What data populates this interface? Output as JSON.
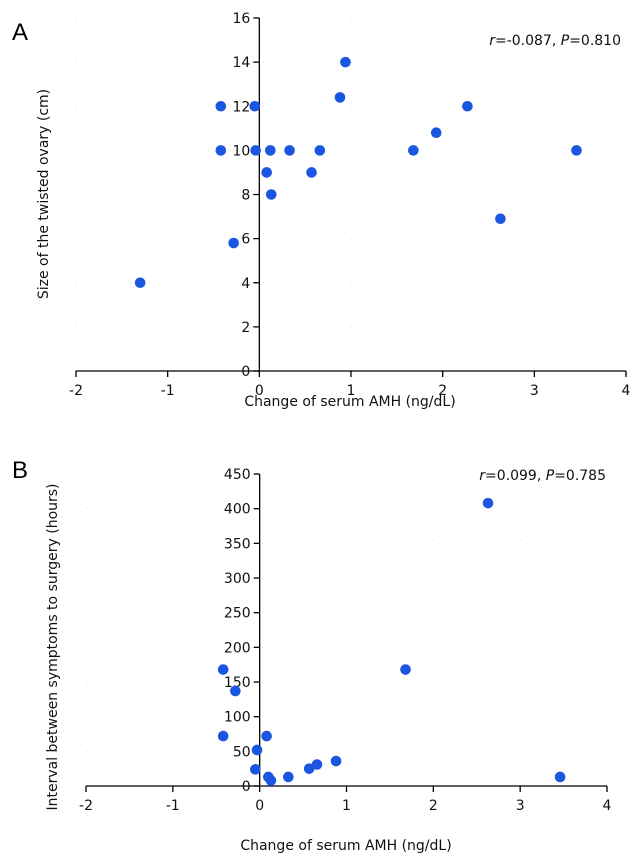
{
  "chart_data": [
    {
      "type": "scatter",
      "panel": "A",
      "title": "",
      "xlabel": "Change of serum AMH (ng/dL)",
      "ylabel": "Size of the twisted ovary (cm)",
      "xlim": [
        -2,
        4
      ],
      "ylim": [
        0,
        16
      ],
      "xticks": [
        -2,
        -1,
        0,
        1,
        2,
        3,
        4
      ],
      "yticks": [
        0,
        2,
        4,
        6,
        8,
        10,
        12,
        14,
        16
      ],
      "annotation": {
        "r_label": "r",
        "r_value": "=-0.087, ",
        "p_label": "P",
        "p_value": "=0.810"
      },
      "points": [
        [
          -1.3,
          4.0
        ],
        [
          -0.42,
          12.0
        ],
        [
          -0.42,
          10.0
        ],
        [
          -0.28,
          5.8
        ],
        [
          -0.05,
          12.0
        ],
        [
          -0.04,
          10.0
        ],
        [
          0.08,
          9.0
        ],
        [
          0.12,
          10.0
        ],
        [
          0.13,
          8.0
        ],
        [
          0.33,
          10.0
        ],
        [
          0.57,
          9.0
        ],
        [
          0.66,
          10.0
        ],
        [
          0.88,
          12.4
        ],
        [
          0.94,
          14.0
        ],
        [
          1.68,
          10.0
        ],
        [
          1.93,
          10.8
        ],
        [
          2.27,
          12.0
        ],
        [
          2.63,
          6.9
        ],
        [
          3.46,
          10.0
        ]
      ]
    },
    {
      "type": "scatter",
      "panel": "B",
      "title": "",
      "xlabel": "Change of serum AMH (ng/dL)",
      "ylabel": "Interval between symptoms to surgery (hours)",
      "xlim": [
        -2,
        4
      ],
      "ylim": [
        0,
        450
      ],
      "xticks": [
        -2,
        -1,
        0,
        1,
        2,
        3,
        4
      ],
      "yticks": [
        0,
        50,
        100,
        150,
        200,
        250,
        300,
        350,
        400,
        450
      ],
      "annotation": {
        "r_label": "r",
        "r_value": "=0.099, ",
        "p_label": "P",
        "p_value": "=0.785"
      },
      "points": [
        [
          -0.42,
          168
        ],
        [
          -0.42,
          72
        ],
        [
          -0.28,
          137
        ],
        [
          -0.05,
          24
        ],
        [
          -0.03,
          52
        ],
        [
          0.08,
          72
        ],
        [
          0.1,
          13
        ],
        [
          0.13,
          8
        ],
        [
          0.33,
          13
        ],
        [
          0.57,
          25
        ],
        [
          0.66,
          31
        ],
        [
          0.88,
          36
        ],
        [
          1.68,
          168
        ],
        [
          2.63,
          408
        ],
        [
          3.46,
          13
        ]
      ]
    }
  ]
}
